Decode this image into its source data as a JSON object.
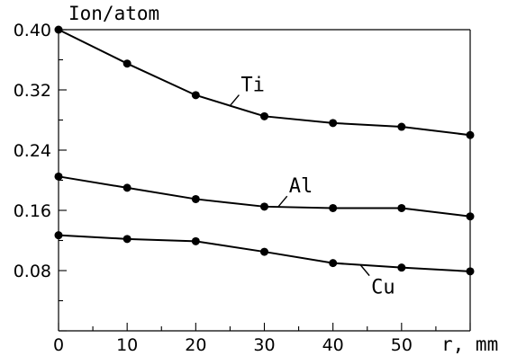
{
  "chart_data": {
    "type": "line",
    "ylabel": "Ion/atom",
    "xlabel": "r, mm",
    "xlim": [
      0,
      60
    ],
    "ylim": [
      0,
      0.4
    ],
    "x_ticks": [
      "0",
      "10",
      "20",
      "30",
      "40",
      "50"
    ],
    "y_ticks": [
      "0.08",
      "0.16",
      "0.24",
      "0.32",
      "0.40"
    ],
    "x": [
      0,
      10,
      20,
      30,
      40,
      50,
      60
    ],
    "series": [
      {
        "name": "Ti",
        "values": [
          0.4,
          0.355,
          0.313,
          0.285,
          0.276,
          0.271,
          0.26
        ],
        "label_at": 25
      },
      {
        "name": "Al",
        "values": [
          0.205,
          0.19,
          0.175,
          0.165,
          0.163,
          0.163,
          0.152
        ],
        "label_at": 32
      },
      {
        "name": "Cu",
        "values": [
          0.127,
          0.122,
          0.119,
          0.105,
          0.09,
          0.084,
          0.079
        ],
        "label_at": 44
      }
    ],
    "grid": false,
    "legend": "inline labels"
  }
}
